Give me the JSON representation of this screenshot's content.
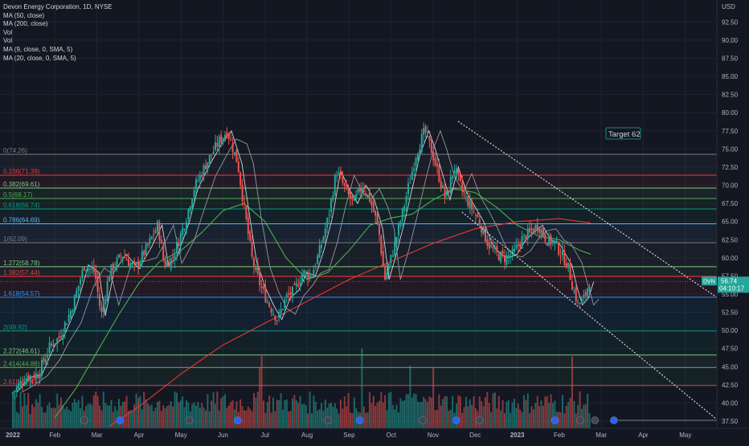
{
  "chart_data": {
    "type": "candlestick",
    "symbol_title": "Devon Energy Corporation, 1D, NYSE",
    "ticker": "DVN",
    "currency_label": "USD",
    "last_price": "56.74",
    "countdown": "04:10:17",
    "legend": [
      "MA (50, close)",
      "MA (200, close)",
      "Vol",
      "Vol",
      "MA (9, close, 0, SMA, 5)",
      "MA (20, close, 0, SMA, 5)"
    ],
    "y_ticks": [
      "92.50",
      "90.00",
      "87.50",
      "85.00",
      "82.50",
      "80.00",
      "77.50",
      "75.00",
      "72.50",
      "70.00",
      "67.50",
      "65.00",
      "62.50",
      "60.00",
      "57.50",
      "55.00",
      "52.50",
      "50.00",
      "47.50",
      "45.00",
      "42.50",
      "40.00",
      "37.50"
    ],
    "ylim": [
      36.6,
      95.8
    ],
    "x_ticks": [
      "2022",
      "Feb",
      "Mar",
      "Apr",
      "May",
      "Jun",
      "Jul",
      "Aug",
      "Sep",
      "Oct",
      "Nov",
      "Dec",
      "2023",
      "Feb",
      "Mar",
      "Apr",
      "May"
    ],
    "annotation": "Target 62",
    "fib_levels": [
      {
        "label": "0(74.26)",
        "value": 74.26,
        "color": "#787b86"
      },
      {
        "label": "0.236(71.39)",
        "value": 71.39,
        "color": "#f23645"
      },
      {
        "label": "0.382(69.61)",
        "value": 69.61,
        "color": "#81c784"
      },
      {
        "label": "0.5(68.17)",
        "value": 68.17,
        "color": "#4caf50"
      },
      {
        "label": "0.618(66.74)",
        "value": 66.74,
        "color": "#089981"
      },
      {
        "label": "0.786(64.69)",
        "value": 64.69,
        "color": "#64b5f6"
      },
      {
        "label": "1(62.09)",
        "value": 62.09,
        "color": "#787b86"
      },
      {
        "label": "1.272(58.78)",
        "value": 58.78,
        "color": "#81c784"
      },
      {
        "label": "1.382(57.44)",
        "value": 57.44,
        "color": "#f23645"
      },
      {
        "label": "1.618(54.57)",
        "value": 54.57,
        "color": "#2196f3"
      },
      {
        "label": "2(49.92)",
        "value": 49.92,
        "color": "#089981"
      },
      {
        "label": "2.272(46.61)",
        "value": 46.61,
        "color": "#81c784"
      },
      {
        "label": "2.414(44.88)",
        "value": 44.88,
        "color": "#4caf50"
      },
      {
        "label": "2.618(42.40)",
        "value": 42.4,
        "color": "#f23645"
      }
    ],
    "price_series": [
      {
        "m": 0,
        "c": 41.5
      },
      {
        "m": 0.3,
        "c": 43.5
      },
      {
        "m": 0.6,
        "c": 44.0
      },
      {
        "m": 0.9,
        "c": 48.0
      },
      {
        "m": 1.1,
        "c": 49.0
      },
      {
        "m": 1.4,
        "c": 53.0
      },
      {
        "m": 1.7,
        "c": 59.0
      },
      {
        "m": 1.95,
        "c": 58.0
      },
      {
        "m": 2.1,
        "c": 52.0
      },
      {
        "m": 2.3,
        "c": 58.0
      },
      {
        "m": 2.6,
        "c": 60.5
      },
      {
        "m": 2.9,
        "c": 58.5
      },
      {
        "m": 3.2,
        "c": 61.5
      },
      {
        "m": 3.45,
        "c": 64.5
      },
      {
        "m": 3.6,
        "c": 59.0
      },
      {
        "m": 3.8,
        "c": 60.0
      },
      {
        "m": 4.1,
        "c": 65.0
      },
      {
        "m": 4.3,
        "c": 69.5
      },
      {
        "m": 4.6,
        "c": 73.0
      },
      {
        "m": 4.9,
        "c": 76.0
      },
      {
        "m": 5.1,
        "c": 77.5
      },
      {
        "m": 5.35,
        "c": 73.0
      },
      {
        "m": 5.5,
        "c": 67.0
      },
      {
        "m": 5.7,
        "c": 59.5
      },
      {
        "m": 5.9,
        "c": 56.0
      },
      {
        "m": 6.1,
        "c": 53.5
      },
      {
        "m": 6.3,
        "c": 51.5
      },
      {
        "m": 6.5,
        "c": 54.5
      },
      {
        "m": 6.7,
        "c": 55.5
      },
      {
        "m": 6.9,
        "c": 58.0
      },
      {
        "m": 7.1,
        "c": 57.5
      },
      {
        "m": 7.3,
        "c": 61.0
      },
      {
        "m": 7.5,
        "c": 65.5
      },
      {
        "m": 7.7,
        "c": 72.0
      },
      {
        "m": 7.9,
        "c": 69.5
      },
      {
        "m": 8.1,
        "c": 67.5
      },
      {
        "m": 8.3,
        "c": 70.0
      },
      {
        "m": 8.5,
        "c": 68.0
      },
      {
        "m": 8.7,
        "c": 64.0
      },
      {
        "m": 8.85,
        "c": 57.0
      },
      {
        "m": 9.0,
        "c": 60.0
      },
      {
        "m": 9.2,
        "c": 64.5
      },
      {
        "m": 9.4,
        "c": 69.5
      },
      {
        "m": 9.6,
        "c": 74.5
      },
      {
        "m": 9.8,
        "c": 77.5
      },
      {
        "m": 9.95,
        "c": 75.0
      },
      {
        "m": 10.1,
        "c": 72.0
      },
      {
        "m": 10.3,
        "c": 68.0
      },
      {
        "m": 10.5,
        "c": 72.5
      },
      {
        "m": 10.7,
        "c": 69.0
      },
      {
        "m": 10.9,
        "c": 67.0
      },
      {
        "m": 11.1,
        "c": 65.0
      },
      {
        "m": 11.3,
        "c": 62.0
      },
      {
        "m": 11.5,
        "c": 60.5
      },
      {
        "m": 11.7,
        "c": 60.0
      },
      {
        "m": 11.9,
        "c": 60.5
      },
      {
        "m": 12.1,
        "c": 62.5
      },
      {
        "m": 12.3,
        "c": 63.5
      },
      {
        "m": 12.5,
        "c": 64.5
      },
      {
        "m": 12.7,
        "c": 62.5
      },
      {
        "m": 12.9,
        "c": 62.0
      },
      {
        "m": 13.05,
        "c": 60.5
      },
      {
        "m": 13.2,
        "c": 59.0
      },
      {
        "m": 13.32,
        "c": 56.0
      },
      {
        "m": 13.45,
        "c": 53.5
      },
      {
        "m": 13.6,
        "c": 54.5
      },
      {
        "m": 13.72,
        "c": 56.74
      }
    ],
    "ma50": [
      {
        "m": 1.0,
        "c": 38.0
      },
      {
        "m": 1.5,
        "c": 42.0
      },
      {
        "m": 2.0,
        "c": 47.0
      },
      {
        "m": 2.5,
        "c": 52.0
      },
      {
        "m": 3.0,
        "c": 56.5
      },
      {
        "m": 3.5,
        "c": 59.5
      },
      {
        "m": 4.0,
        "c": 61.0
      },
      {
        "m": 4.5,
        "c": 63.5
      },
      {
        "m": 5.0,
        "c": 66.5
      },
      {
        "m": 5.5,
        "c": 67.5
      },
      {
        "m": 6.0,
        "c": 65.0
      },
      {
        "m": 6.5,
        "c": 60.0
      },
      {
        "m": 7.0,
        "c": 57.0
      },
      {
        "m": 7.5,
        "c": 58.0
      },
      {
        "m": 8.0,
        "c": 61.0
      },
      {
        "m": 8.5,
        "c": 64.5
      },
      {
        "m": 9.0,
        "c": 65.5
      },
      {
        "m": 9.5,
        "c": 66.0
      },
      {
        "m": 10.0,
        "c": 68.0
      },
      {
        "m": 10.5,
        "c": 69.5
      },
      {
        "m": 11.0,
        "c": 69.0
      },
      {
        "m": 11.5,
        "c": 67.0
      },
      {
        "m": 12.0,
        "c": 64.5
      },
      {
        "m": 12.5,
        "c": 63.0
      },
      {
        "m": 13.0,
        "c": 62.5
      },
      {
        "m": 13.5,
        "c": 61.0
      },
      {
        "m": 13.75,
        "c": 60.5
      }
    ],
    "ma200": [
      {
        "m": 2.3,
        "c": 36.8
      },
      {
        "m": 3.0,
        "c": 39.5
      },
      {
        "m": 4.0,
        "c": 44.0
      },
      {
        "m": 5.0,
        "c": 48.0
      },
      {
        "m": 6.0,
        "c": 51.0
      },
      {
        "m": 7.0,
        "c": 54.0
      },
      {
        "m": 8.0,
        "c": 57.0
      },
      {
        "m": 9.0,
        "c": 59.5
      },
      {
        "m": 10.0,
        "c": 62.0
      },
      {
        "m": 11.0,
        "c": 64.0
      },
      {
        "m": 12.0,
        "c": 65.0
      },
      {
        "m": 13.0,
        "c": 65.4
      },
      {
        "m": 13.75,
        "c": 64.8
      }
    ],
    "volume_spike_months": [
      5.9,
      8.3,
      9.45,
      10.0,
      13.32
    ]
  }
}
